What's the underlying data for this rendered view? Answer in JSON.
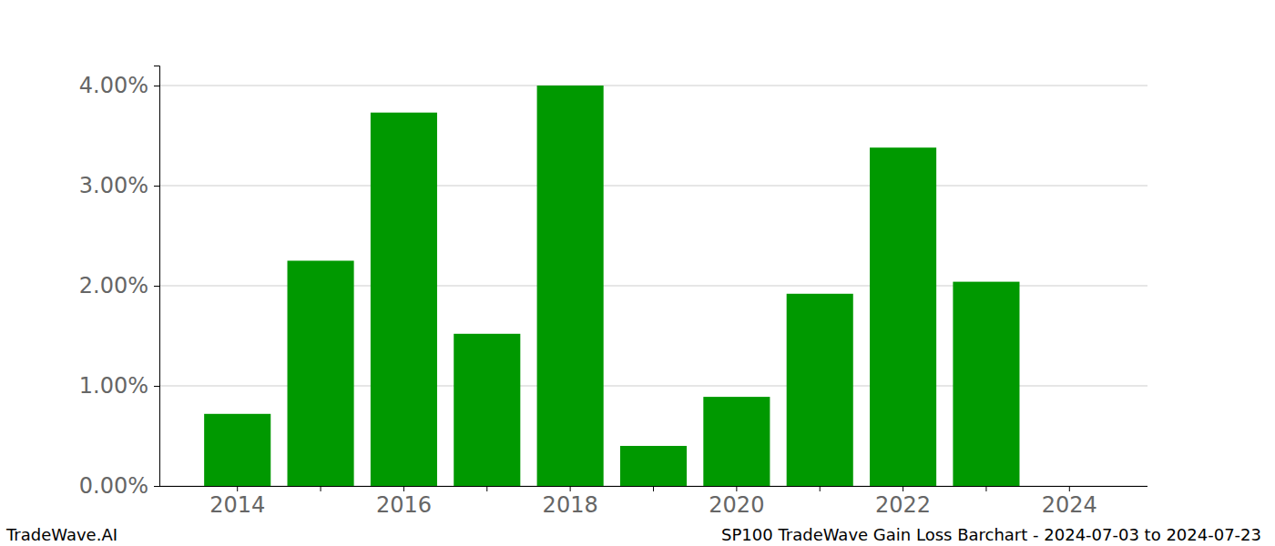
{
  "chart_data": {
    "type": "bar",
    "title": "SP100 TradeWave Gain Loss Barchart - 2024-07-03 to 2024-07-23",
    "annotations": [
      "TradeWave.AI"
    ],
    "categories": [
      "2014",
      null,
      "2016",
      null,
      "2018",
      null,
      "2020",
      null,
      "2022",
      null,
      "2024"
    ],
    "values": [
      0.72,
      2.25,
      3.73,
      1.52,
      4.0,
      0.4,
      0.89,
      1.92,
      3.38,
      2.04,
      null
    ],
    "color": "#009900",
    "ylim": [
      0,
      4.2
    ],
    "yticks": [
      {
        "value": 0,
        "label": "0.00%"
      },
      {
        "value": 1,
        "label": "1.00%"
      },
      {
        "value": 2,
        "label": "2.00%"
      },
      {
        "value": 3,
        "label": "3.00%"
      },
      {
        "value": 4,
        "label": "4.00%"
      }
    ],
    "grid": true
  }
}
